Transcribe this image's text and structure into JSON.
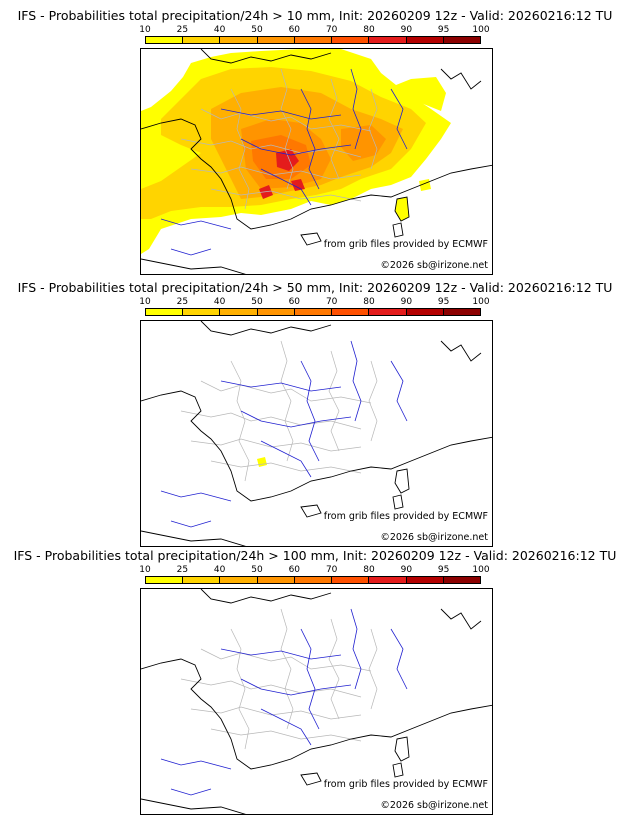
{
  "legend": {
    "labels": [
      "10",
      "25",
      "40",
      "50",
      "60",
      "70",
      "80",
      "90",
      "95",
      "100"
    ],
    "colors": [
      "#ffff00",
      "#ffd400",
      "#ffb000",
      "#ff9400",
      "#ff7800",
      "#ff5000",
      "#e41c1c",
      "#b40000",
      "#8c0000",
      "#580000"
    ]
  },
  "panels": [
    {
      "title": "IFS - Probabilities total precipitation/24h > 10 mm, Init: 20260209 12z - Valid: 20260216:12 TU",
      "credit": "from grib files provided by ECMWF",
      "copyright": "©2026 sb@irizone.net",
      "threshold_mm": 10,
      "precip_coverage": "extensive"
    },
    {
      "title": "IFS - Probabilities total precipitation/24h > 50 mm, Init: 20260209 12z - Valid: 20260216:12 TU",
      "credit": "from grib files provided by ECMWF",
      "copyright": "©2026 sb@irizone.net",
      "threshold_mm": 50,
      "precip_coverage": "minimal"
    },
    {
      "title": "IFS - Probabilities total precipitation/24h > 100 mm, Init: 20260209 12z - Valid: 20260216:12 TU",
      "credit": "from grib files provided by ECMWF",
      "copyright": "©2026 sb@irizone.net",
      "threshold_mm": 100,
      "precip_coverage": "none"
    }
  ],
  "map_colors": {
    "coast": "#000000",
    "borders": "#b8b8b8",
    "rivers": "#2020d0"
  }
}
